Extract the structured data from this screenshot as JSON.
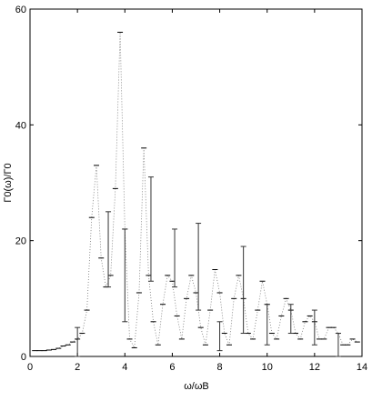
{
  "chart_data": {
    "type": "scatter",
    "xlabel": "ω/ωB",
    "ylabel": "Γ0(ω)/Γ0",
    "xlim": [
      0,
      14
    ],
    "ylim": [
      0,
      60
    ],
    "xticks": [
      0,
      2,
      4,
      6,
      8,
      10,
      12,
      14
    ],
    "yticks": [
      0,
      20,
      40,
      60
    ],
    "color": "#000000",
    "series": [
      {
        "x": [
          0.2,
          0.4,
          0.6,
          0.8,
          1.0,
          1.2,
          1.4,
          1.6,
          1.8,
          2.0,
          2.2,
          2.4,
          2.6,
          2.8,
          3.0,
          3.2,
          3.4,
          3.6,
          3.8,
          4.0,
          4.2,
          4.4,
          4.6,
          4.8,
          5.0,
          5.2,
          5.4,
          5.6,
          5.8,
          6.0,
          6.2,
          6.4,
          6.6,
          6.8,
          7.0,
          7.2,
          7.4,
          7.6,
          7.8,
          8.0,
          8.2,
          8.4,
          8.6,
          8.8,
          9.0,
          9.2,
          9.4,
          9.6,
          9.8,
          10.0,
          10.2,
          10.4,
          10.6,
          10.8,
          11.0,
          11.2,
          11.4,
          11.6,
          11.8,
          12.0,
          12.2,
          12.4,
          12.6,
          12.8,
          13.0,
          13.2,
          13.4,
          13.6,
          13.8
        ],
        "y": [
          1,
          1,
          1,
          1.1,
          1.2,
          1.4,
          1.8,
          2,
          2.5,
          3,
          4,
          8,
          24,
          33,
          17,
          12,
          14,
          29,
          56,
          22,
          3,
          1.5,
          11,
          36,
          14,
          6,
          2,
          9,
          14,
          13,
          7,
          3,
          10,
          14,
          11,
          5,
          2,
          8,
          15,
          11,
          4,
          2,
          10,
          14,
          10,
          4,
          3,
          8,
          13,
          9,
          4,
          3,
          7,
          10,
          8,
          4,
          3,
          6,
          7,
          6,
          3,
          3,
          5,
          5,
          4,
          2,
          2,
          3,
          2.5
        ]
      }
    ],
    "errorbars": {
      "x": [
        2.0,
        3.3,
        4.0,
        5.1,
        6.1,
        7.1,
        8.0,
        9.0,
        10.0,
        11.0,
        12.0,
        13.0
      ],
      "y": [
        2.5,
        18.5,
        14,
        22,
        17,
        15.5,
        3.5,
        11.5,
        5.5,
        6.5,
        5,
        2
      ],
      "err": [
        2.5,
        6.5,
        8,
        9,
        5,
        7.5,
        2.5,
        7.5,
        3.5,
        2.5,
        3,
        2
      ]
    }
  }
}
